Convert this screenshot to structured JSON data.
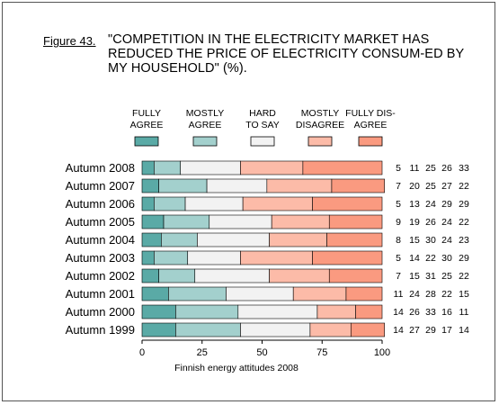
{
  "figure": {
    "label": "Figure 43.",
    "title": "\"COMPETITION IN THE ELECTRICITY MARKET HAS REDUCED THE PRICE OF ELECTRICITY CONSUM-ED BY MY HOUSEHOLD\" (%)."
  },
  "colors": {
    "fully_agree": "#5aaaa6",
    "mostly_agree": "#a3d0cd",
    "hard_to_say": "#f2f2f2",
    "mostly_disagree": "#fcbba8",
    "fully_disagree": "#fa9a80"
  },
  "chart_data": {
    "type": "bar",
    "orientation": "horizontal-stacked-100",
    "title": "\"COMPETITION IN THE ELECTRICITY MARKET HAS REDUCED THE PRICE OF ELECTRICITY CONSUM-ED BY MY HOUSEHOLD\" (%).",
    "xlabel": "",
    "ylabel": "",
    "xlim": [
      0,
      100
    ],
    "x_ticks": [
      0,
      25,
      50,
      75,
      100
    ],
    "source_note": "Finnish energy attitudes 2008",
    "grid": false,
    "legend_position": "top",
    "categories": [
      "Autumn 2008",
      "Autumn 2007",
      "Autumn 2006",
      "Autumn 2005",
      "Autumn 2004",
      "Autumn 2003",
      "Autumn 2002",
      "Autumn 2001",
      "Autumn 2000",
      "Autumn 1999"
    ],
    "series": [
      {
        "name": "FULLY AGREE",
        "legend_lines": [
          "FULLY",
          "AGREE"
        ],
        "color": "#5aaaa6",
        "values": [
          5,
          7,
          5,
          9,
          8,
          5,
          7,
          11,
          14,
          14
        ]
      },
      {
        "name": "MOSTLY AGREE",
        "legend_lines": [
          "MOSTLY",
          "AGREE"
        ],
        "color": "#a3d0cd",
        "values": [
          11,
          20,
          13,
          19,
          15,
          14,
          15,
          24,
          26,
          27
        ]
      },
      {
        "name": "HARD TO SAY",
        "legend_lines": [
          "HARD",
          "TO SAY"
        ],
        "color": "#f2f2f2",
        "values": [
          25,
          25,
          24,
          26,
          30,
          22,
          31,
          28,
          33,
          29
        ]
      },
      {
        "name": "MOSTLY DISAGREE",
        "legend_lines": [
          "MOSTLY",
          "DISAGREE"
        ],
        "color": "#fcbba8",
        "values": [
          26,
          27,
          29,
          24,
          24,
          30,
          25,
          22,
          16,
          17
        ]
      },
      {
        "name": "FULLY DIS-AGREE",
        "legend_lines": [
          "FULLY DIS-",
          "AGREE"
        ],
        "color": "#fa9a80",
        "values": [
          33,
          22,
          29,
          22,
          23,
          29,
          22,
          15,
          11,
          14
        ]
      }
    ]
  }
}
